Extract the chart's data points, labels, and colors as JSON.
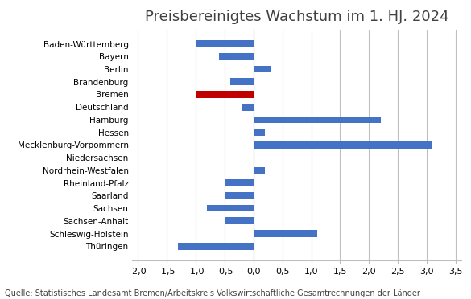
{
  "title": "Preisbereinigtes Wachstum im 1. HJ. 2024",
  "source": "Quelle: Statistisches Landesamt Bremen/Arbeitskreis Volkswirtschaftliche Gesamtrechnungen der Länder",
  "categories": [
    "Baden-Württemberg",
    "Bayern",
    "Berlin",
    "Brandenburg",
    "Bremen",
    "Deutschland",
    "Hamburg",
    "Hessen",
    "Mecklenburg-Vorpommern",
    "Niedersachsen",
    "Nordrhein-Westfalen",
    "Rheinland-Pfalz",
    "Saarland",
    "Sachsen",
    "Sachsen-Anhalt",
    "Schleswig-Holstein",
    "Thüringen"
  ],
  "values": [
    -1.0,
    -0.6,
    0.3,
    -0.4,
    -1.0,
    -0.2,
    2.2,
    0.2,
    3.1,
    0.0,
    0.2,
    -0.5,
    -0.5,
    -0.8,
    -0.5,
    1.1,
    -1.3
  ],
  "colors": [
    "#4472C4",
    "#4472C4",
    "#4472C4",
    "#4472C4",
    "#C00000",
    "#4472C4",
    "#4472C4",
    "#4472C4",
    "#4472C4",
    "#4472C4",
    "#4472C4",
    "#4472C4",
    "#4472C4",
    "#4472C4",
    "#4472C4",
    "#4472C4",
    "#4472C4"
  ],
  "xlim": [
    -2.1,
    3.6
  ],
  "xticks": [
    -2.0,
    -1.5,
    -1.0,
    -0.5,
    0.0,
    0.5,
    1.0,
    1.5,
    2.0,
    2.5,
    3.0,
    3.5
  ],
  "xtick_labels": [
    "-2,0",
    "-1,5",
    "-1,0",
    "-0,5",
    "0,0",
    "0,5",
    "1,0",
    "1,5",
    "2,0",
    "2,5",
    "3,0",
    "3,5"
  ],
  "background_color": "#FFFFFF",
  "grid_color": "#BFBFBF",
  "title_fontsize": 13,
  "label_fontsize": 7.5,
  "tick_fontsize": 8,
  "source_fontsize": 7
}
